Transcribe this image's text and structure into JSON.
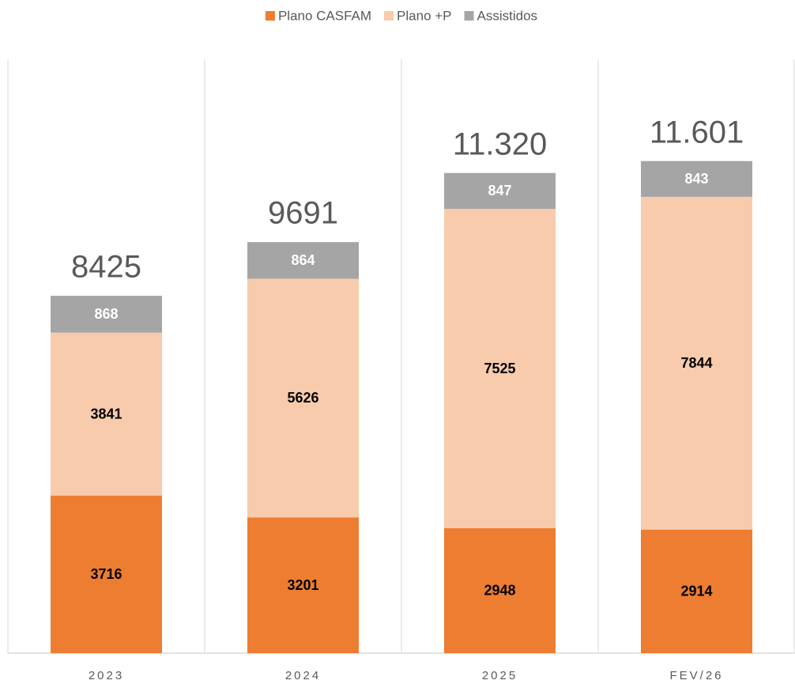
{
  "chart_data": {
    "type": "bar",
    "stacked": true,
    "categories": [
      "2023",
      "2024",
      "2025",
      "FEV/26"
    ],
    "series": [
      {
        "name": "Plano CASFAM",
        "color": "#ed7d31",
        "label_color": "#000000",
        "values": [
          3716,
          3201,
          2948,
          2914
        ]
      },
      {
        "name": "Plano +P",
        "color": "#f8cbad",
        "label_color": "#000000",
        "values": [
          3841,
          5626,
          7525,
          7844
        ]
      },
      {
        "name": "Assistidos",
        "color": "#a5a5a5",
        "label_color": "#ffffff",
        "values": [
          868,
          864,
          847,
          843
        ]
      }
    ],
    "totals": {
      "values": [
        8425,
        9691,
        11320,
        11601
      ],
      "value_labels": [
        "8425",
        "9691",
        "11.320",
        "11.601"
      ]
    },
    "ylim": [
      0,
      14000
    ],
    "legend": "top"
  }
}
